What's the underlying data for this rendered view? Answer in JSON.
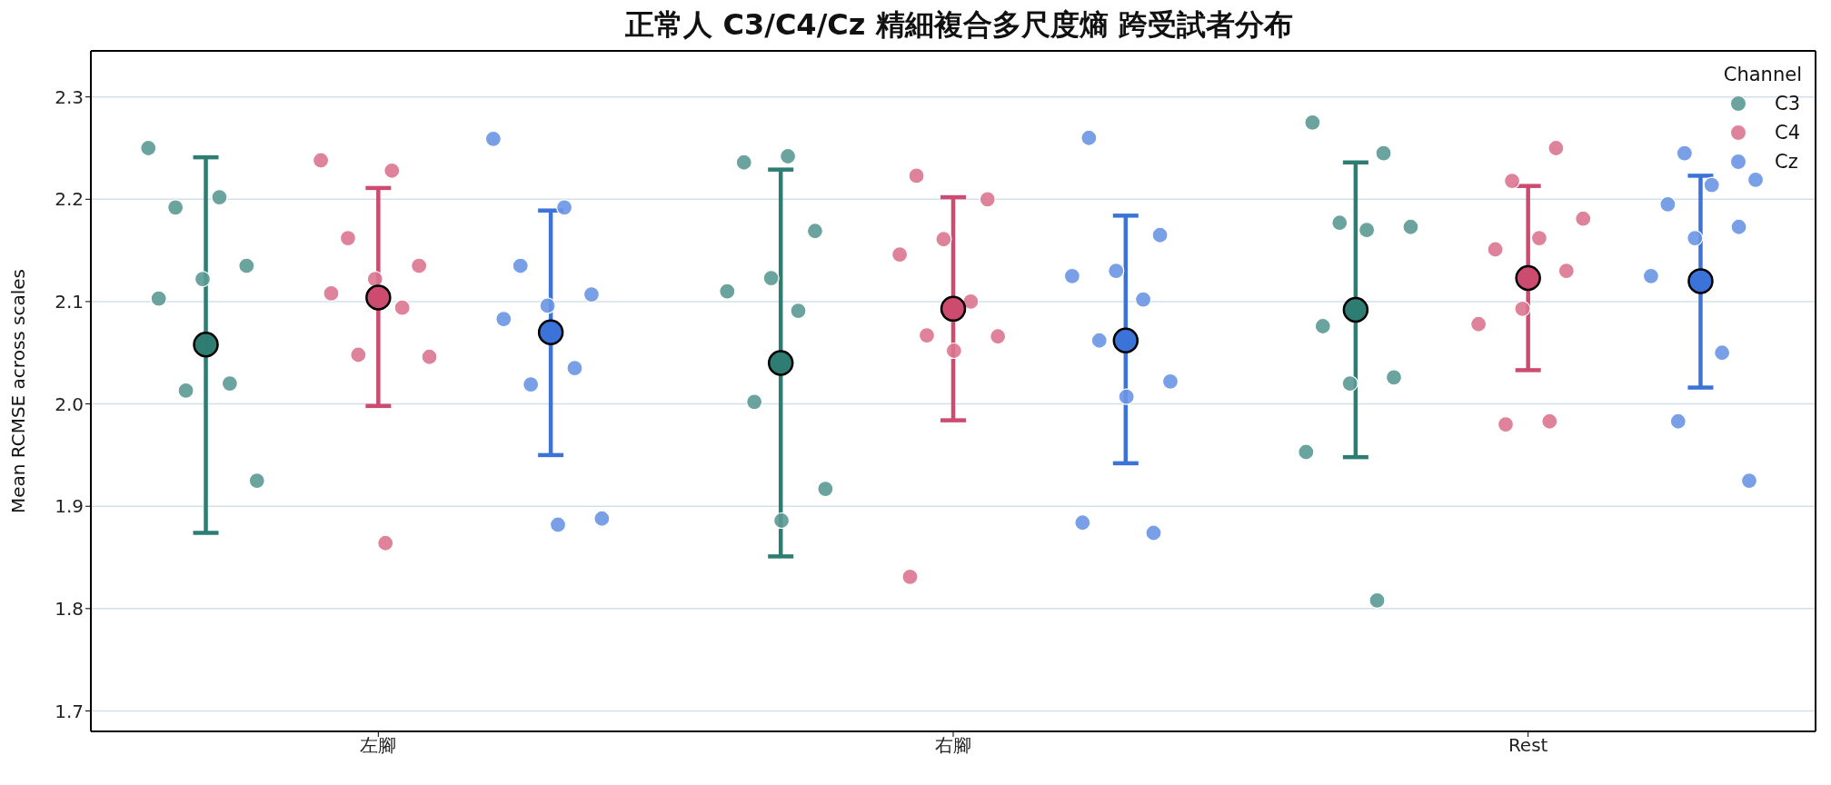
{
  "chart_data": {
    "type": "scatter",
    "title": "正常人 C3/C4/Cz 精細複合多尺度熵 跨受試者分布",
    "ylabel": "Mean RCMSE across scales",
    "categories": [
      "左腳",
      "右腳",
      "Rest"
    ],
    "ylim": [
      1.68,
      2.345
    ],
    "yticks": [
      1.7,
      1.8,
      1.9,
      {
        "value": 2,
        "label": "2.0"
      },
      2.1,
      2.2,
      2.3
    ],
    "grid": "y",
    "legend": "top right",
    "legend_title": "Channel",
    "marker": "circle",
    "series": [
      {
        "name": "C3",
        "color": "#5b9a93",
        "x": [
          "左腳",
          "左腳",
          "左腳",
          "左腳",
          "左腳",
          "左腳",
          "左腳",
          "左腳",
          "左腳",
          "右腳",
          "右腳",
          "右腳",
          "右腳",
          "右腳",
          "右腳",
          "右腳",
          "右腳",
          "右腳",
          "Rest",
          "Rest",
          "Rest",
          "Rest",
          "Rest",
          "Rest",
          "Rest",
          "Rest",
          "Rest",
          "Rest"
        ],
        "values": [
          2.25,
          2.202,
          2.192,
          2.135,
          2.122,
          2.103,
          2.02,
          2.013,
          1.925,
          2.242,
          2.236,
          2.169,
          2.123,
          2.11,
          2.091,
          2.002,
          1.917,
          1.886,
          2.275,
          2.245,
          2.177,
          2.173,
          2.17,
          2.076,
          2.026,
          2.02,
          1.953,
          1.808
        ]
      },
      {
        "name": "C4",
        "color": "#da7590",
        "x": [
          "左腳",
          "左腳",
          "左腳",
          "左腳",
          "左腳",
          "左腳",
          "左腳",
          "左腳",
          "左腳",
          "左腳",
          "右腳",
          "右腳",
          "右腳",
          "右腳",
          "右腳",
          "右腳",
          "右腳",
          "右腳",
          "右腳",
          "Rest",
          "Rest",
          "Rest",
          "Rest",
          "Rest",
          "Rest",
          "Rest",
          "Rest",
          "Rest",
          "Rest"
        ],
        "values": [
          2.238,
          2.228,
          2.162,
          2.135,
          2.122,
          2.108,
          2.094,
          2.048,
          2.046,
          1.864,
          2.223,
          2.2,
          2.161,
          2.146,
          2.1,
          2.067,
          2.066,
          2.052,
          1.831,
          2.25,
          2.218,
          2.181,
          2.162,
          2.151,
          2.13,
          2.093,
          2.078,
          1.983,
          1.98
        ]
      },
      {
        "name": "Cz",
        "color": "#6a96e4",
        "x": [
          "左腳",
          "左腳",
          "左腳",
          "左腳",
          "左腳",
          "左腳",
          "左腳",
          "左腳",
          "左腳",
          "左腳",
          "右腳",
          "右腳",
          "右腳",
          "右腳",
          "右腳",
          "右腳",
          "右腳",
          "右腳",
          "右腳",
          "右腳",
          "Rest",
          "Rest",
          "Rest",
          "Rest",
          "Rest",
          "Rest",
          "Rest",
          "Rest",
          "Rest",
          "Rest"
        ],
        "values": [
          2.259,
          2.192,
          2.135,
          2.107,
          2.096,
          2.083,
          2.035,
          2.019,
          1.888,
          1.882,
          2.26,
          2.165,
          2.13,
          2.125,
          2.102,
          2.062,
          2.022,
          2.007,
          1.884,
          1.874,
          2.245,
          2.219,
          2.214,
          2.195,
          2.173,
          2.162,
          2.125,
          2.05,
          1.983,
          1.925
        ]
      },
      {
        "color": "#2e7d72",
        "x": [
          "左腳",
          "右腳",
          "Rest"
        ],
        "values": [
          2.058,
          2.04,
          2.092
        ],
        "errors": [
          [
            1.874,
            2.241
          ],
          [
            1.851,
            2.229
          ],
          [
            1.948,
            2.236
          ]
        ]
      },
      {
        "color": "#cd4b6f",
        "x": [
          "左腳",
          "右腳",
          "Rest"
        ],
        "values": [
          2.104,
          2.093,
          2.123
        ],
        "errors": [
          [
            1.998,
            2.211
          ],
          [
            1.984,
            2.202
          ],
          [
            2.033,
            2.213
          ]
        ]
      },
      {
        "color": "#3b73d9",
        "x": [
          "左腳",
          "右腳",
          "Rest"
        ],
        "values": [
          2.07,
          2.062,
          2.12
        ],
        "errors": [
          [
            1.95,
            2.189
          ],
          [
            1.942,
            2.184
          ],
          [
            2.016,
            2.223
          ]
        ]
      }
    ]
  }
}
